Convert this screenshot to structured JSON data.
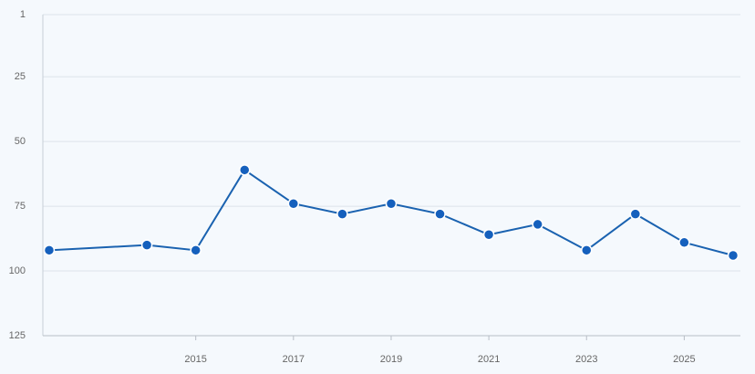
{
  "chart_data": {
    "type": "line",
    "x": [
      2012,
      2014,
      2015,
      2016,
      2017,
      2018,
      2019,
      2020,
      2021,
      2022,
      2023,
      2024,
      2025,
      2026
    ],
    "values": [
      92,
      90,
      92,
      61,
      74,
      78,
      74,
      78,
      86,
      82,
      92,
      78,
      89,
      94
    ],
    "color": "#1a62b0",
    "xlim": [
      2011.87,
      2026.15
    ],
    "xticks": [
      2015,
      2017,
      2019,
      2021,
      2023,
      2025
    ],
    "ylim": [
      1,
      125
    ],
    "yticks": [
      1,
      25,
      50,
      75,
      100,
      125
    ],
    "y_inverted": true,
    "grid": true
  }
}
